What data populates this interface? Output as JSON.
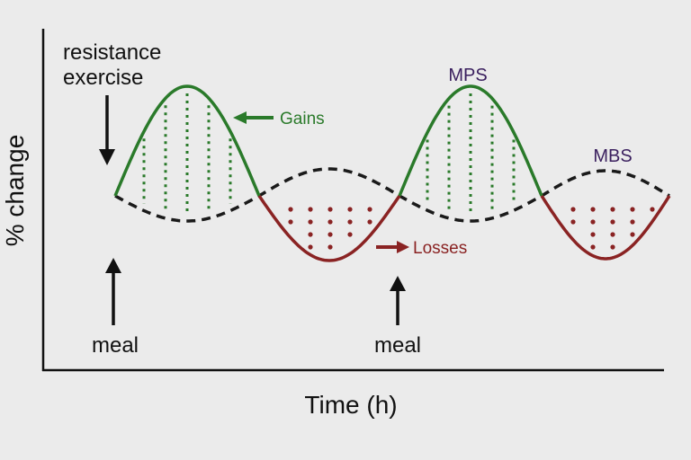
{
  "labels": {
    "ylabel": "% change",
    "xlabel": "Time (h)",
    "trigger_line1": "resistance",
    "trigger_line2": "exercise",
    "gains": "Gains",
    "losses": "Losses",
    "mps": "MPS",
    "mbs": "MBS",
    "meal_1": "meal",
    "meal_2": "meal"
  },
  "colors": {
    "mps": "#2a7a2a",
    "mbs": "#1a1a1a",
    "gains": "#2a7a2a",
    "losses": "#8a2323",
    "mps_label": "#3a1f5e",
    "mbs_label": "#3a1f5e",
    "text": "#111111",
    "axis": "#111111",
    "background": "#ebebeb"
  },
  "icons": {
    "down_arrow": "down-arrow-icon",
    "up_arrow": "up-arrow-icon",
    "gains_arrow": "left-arrow-icon",
    "losses_arrow": "right-arrow-icon"
  }
}
